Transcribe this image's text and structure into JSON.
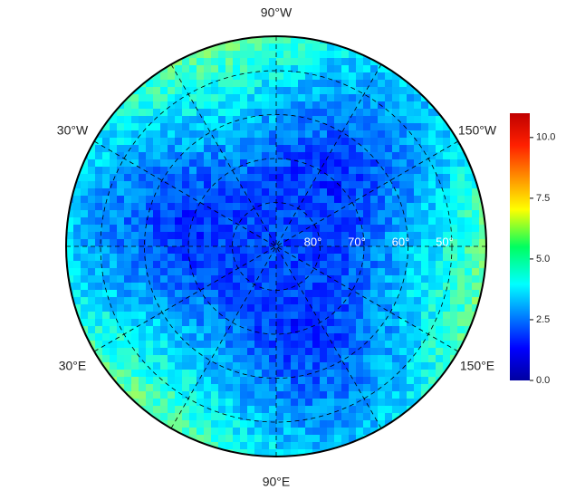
{
  "map": {
    "meridian_labels": [
      "90°W",
      "30°W",
      "150°W",
      "30°E",
      "150°E",
      "90°E"
    ],
    "latitude_circles": [
      {
        "value": 80,
        "label": "80°"
      },
      {
        "value": 70,
        "label": "70°"
      },
      {
        "value": 60,
        "label": "60°"
      },
      {
        "value": 50,
        "label": "50°"
      }
    ],
    "colorbar": {
      "lim": [
        0,
        11
      ],
      "ticks": [
        {
          "value": 0,
          "label": "0.0"
        },
        {
          "value": 2.5,
          "label": "2.5"
        },
        {
          "value": 5,
          "label": "5.0"
        },
        {
          "value": 7.5,
          "label": "7.5"
        },
        {
          "value": 10,
          "label": "10.0"
        }
      ]
    }
  }
}
